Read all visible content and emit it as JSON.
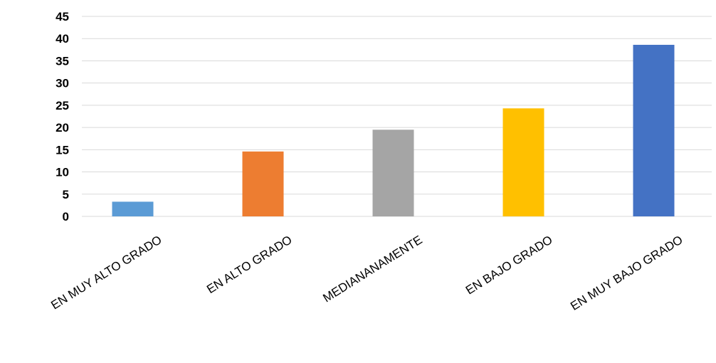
{
  "chart_data": {
    "type": "bar",
    "title": "",
    "xlabel": "",
    "ylabel": "",
    "categories": [
      "EN MUY ALTO GRADO",
      "EN ALTO GRADO",
      "MEDIANANAMENTE",
      "EN BAJO GRADO",
      "EN MUY BAJO GRADO"
    ],
    "values": [
      3.3,
      14.6,
      19.5,
      24.3,
      38.6
    ],
    "colors": [
      "#5b9bd5",
      "#ed7d31",
      "#a5a5a5",
      "#ffc000",
      "#4472c4"
    ],
    "ylim": [
      0,
      45
    ],
    "yticks": [
      0,
      5,
      10,
      15,
      20,
      25,
      30,
      35,
      40,
      45
    ],
    "grid": true,
    "legend": "none"
  }
}
